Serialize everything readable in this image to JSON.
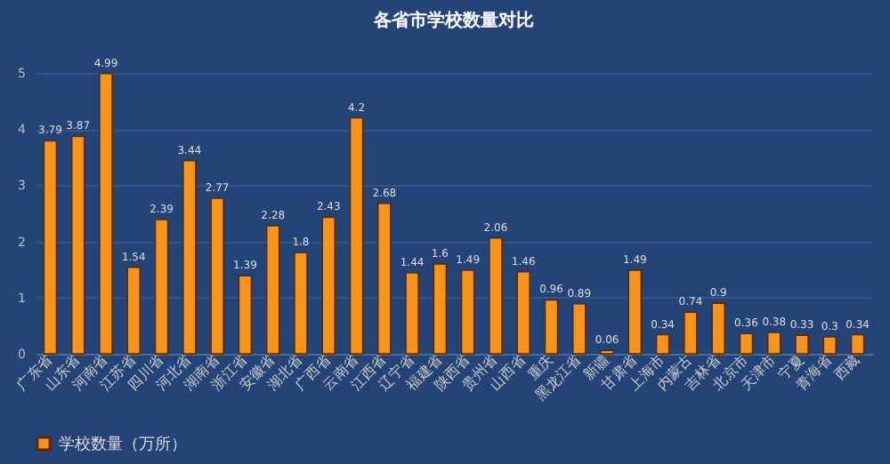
{
  "chart_data": {
    "type": "bar",
    "title": "各省市学校数量对比",
    "categories": [
      "广东省",
      "山东省",
      "河南省",
      "江苏省",
      "四川省",
      "河北省",
      "湖南省",
      "浙江省",
      "安徽省",
      "湖北省",
      "广西省",
      "云南省",
      "江西省",
      "辽宁省",
      "福建省",
      "陕西省",
      "贵州省",
      "山西省",
      "重庆",
      "黑龙江省",
      "新疆",
      "甘肃省",
      "上海市",
      "内蒙古",
      "吉林省",
      "北京市",
      "天津市",
      "宁夏",
      "青海省",
      "西藏"
    ],
    "series": [
      {
        "name": "学校数量（万所）",
        "color": "#f7941d",
        "values": [
          3.79,
          3.87,
          4.99,
          1.54,
          2.39,
          3.44,
          2.77,
          1.39,
          2.28,
          1.8,
          2.43,
          4.2,
          2.68,
          1.44,
          1.6,
          1.49,
          2.06,
          1.46,
          0.96,
          0.89,
          0.06,
          1.49,
          0.34,
          0.74,
          0.9,
          0.36,
          0.38,
          0.33,
          0.3,
          0.34
        ]
      }
    ],
    "ylim": [
      0,
      5
    ],
    "yticks": [
      0,
      1,
      2,
      3,
      4,
      5
    ],
    "grid": "y",
    "legend": "bottom",
    "data_labels": true
  }
}
